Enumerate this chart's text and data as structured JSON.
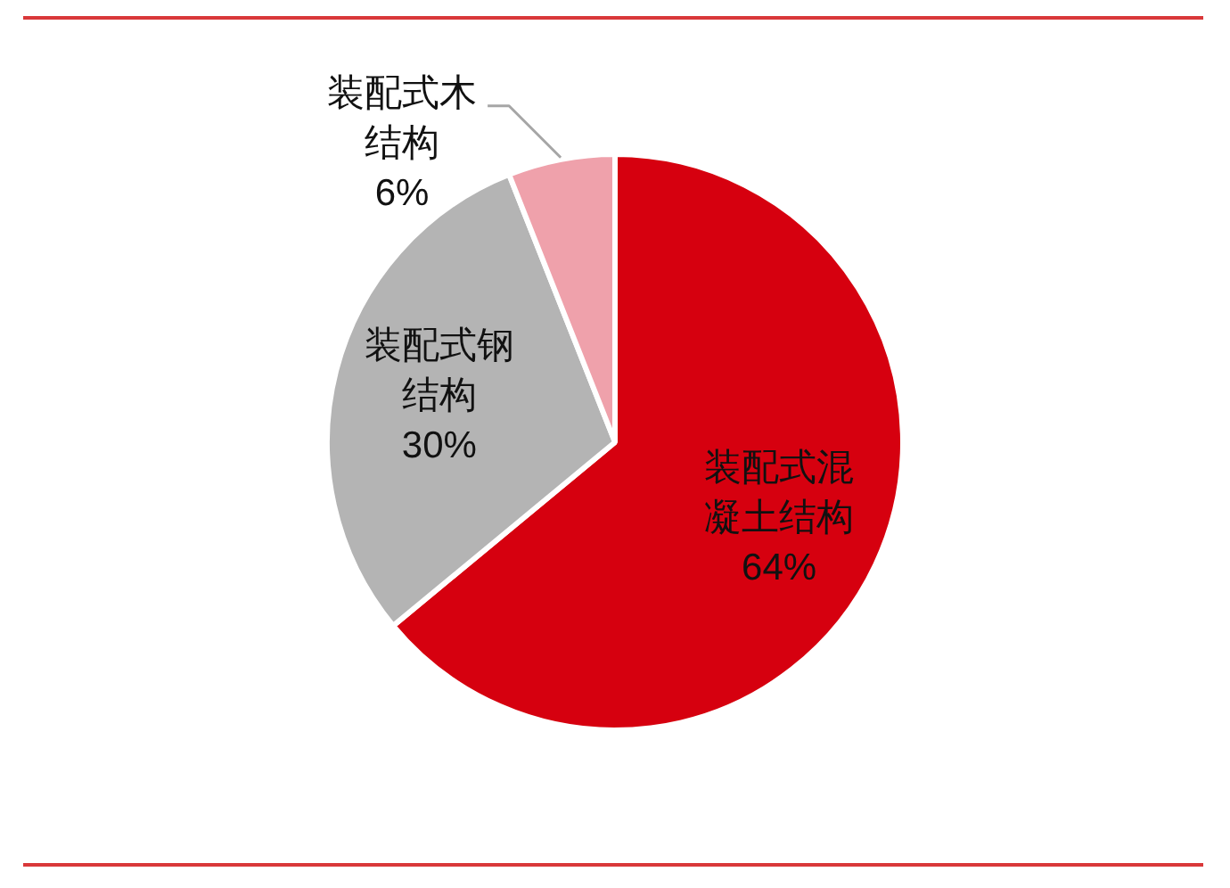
{
  "chart_data": {
    "type": "pie",
    "categories": [
      "装配式混凝土结构",
      "装配式钢结构",
      "装配式木结构"
    ],
    "values": [
      64,
      30,
      6
    ],
    "value_labels": [
      "64%",
      "30%",
      "6%"
    ],
    "colors": [
      "#d6000f",
      "#b4b4b4",
      "#efa1ab"
    ]
  }
}
